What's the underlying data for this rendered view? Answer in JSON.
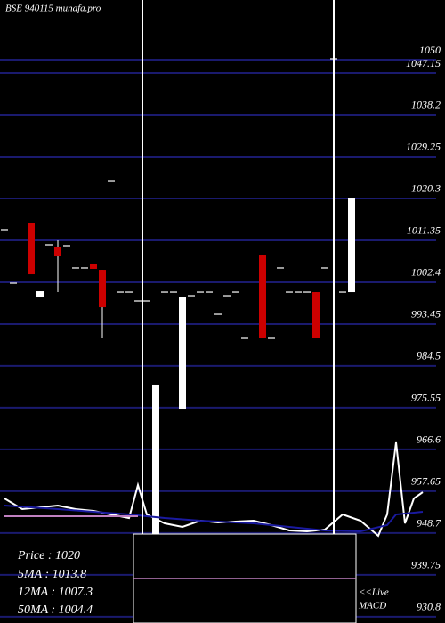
{
  "chart_data": {
    "type": "candlestick",
    "title": "BSE 940115 munafa.pro",
    "info": [
      "Price   : 1020",
      "5MA : 1013.8",
      "12MA : 1007.3",
      "50MA : 1004.4"
    ],
    "macd_label": [
      "<<Live",
      "MACD"
    ],
    "xlim": [
      -0.5,
      49.5
    ],
    "ylim": [
      929.44,
      1062.77
    ],
    "yticks": [
      1050,
      1047.15,
      1038.2,
      1029.25,
      1020.3,
      1011.35,
      1002.4,
      993.45,
      984.5,
      975.55,
      966.6,
      957.65,
      948.7,
      939.75,
      930.8
    ],
    "grid": true,
    "up_color": "#ffffff",
    "down_color": "#cc0000",
    "x": [
      0,
      1,
      3,
      4,
      5,
      6,
      7,
      8,
      9,
      10,
      11,
      12,
      13,
      14,
      15,
      16,
      17,
      18,
      19,
      20,
      21,
      22,
      23,
      24,
      25,
      26,
      27,
      29,
      30,
      31,
      32,
      33,
      34,
      35,
      36,
      37,
      38,
      39
    ],
    "open": [
      1013.63,
      1002.2,
      1015.15,
      999.15,
      1010.39,
      1010.01,
      1010.2,
      1005.44,
      1005.44,
      1006.2,
      1005.05,
      1024.1,
      1000.29,
      1000.29,
      998.39,
      998.39,
      948.48,
      1000.29,
      1000.29,
      975.15,
      999.34,
      1000.29,
      1000.29,
      995.53,
      999.34,
      1000.29,
      990.39,
      1008.1,
      990.39,
      1005.44,
      1000.29,
      1000.29,
      1000.29,
      1000.29,
      1005.44,
      1050.2,
      1000.29,
      1000.29
    ],
    "high": [
      1013.63,
      1002.2,
      1015.15,
      1000.48,
      1010.39,
      1011.34,
      1010.2,
      1005.44,
      1005.44,
      1006.2,
      1005.05,
      1024.1,
      1000.29,
      1000.29,
      998.39,
      998.39,
      980.3,
      1000.29,
      1000.29,
      999.15,
      999.34,
      1000.29,
      1000.29,
      995.53,
      999.34,
      1000.29,
      990.39,
      1008.1,
      990.39,
      1005.44,
      1000.29,
      1000.29,
      1000.29,
      1000.29,
      1005.44,
      1050.2,
      1000.29,
      1020.29
    ],
    "low": [
      1013.63,
      1002.2,
      1004.1,
      999.15,
      1010.39,
      1000.29,
      1010.2,
      1005.44,
      1005.44,
      1005.25,
      990.39,
      1024.1,
      1000.29,
      1000.29,
      998.39,
      998.39,
      948.48,
      1000.29,
      1000.29,
      975.15,
      999.34,
      1000.29,
      1000.29,
      995.53,
      999.34,
      1000.29,
      990.39,
      990.39,
      990.39,
      1005.44,
      1000.29,
      1000.29,
      1000.29,
      990.39,
      1005.44,
      1050.2,
      1000.29,
      1000.29
    ],
    "close": [
      1013.63,
      1002.2,
      1004.1,
      1000.48,
      1010.39,
      1007.91,
      1010.2,
      1005.44,
      1005.44,
      1005.25,
      997.05,
      1024.1,
      1000.29,
      1000.29,
      998.39,
      998.39,
      980.3,
      1000.29,
      1000.29,
      999.15,
      999.34,
      1000.29,
      1000.29,
      995.53,
      999.34,
      1000.29,
      990.39,
      990.39,
      990.39,
      1005.44,
      1000.29,
      1000.29,
      1000.29,
      990.39,
      1005.44,
      1050.2,
      1000.29,
      1020.29
    ],
    "lines": [
      {
        "color": "#ffffff",
        "x": [
          0,
          2,
          4,
          6,
          8,
          10,
          12,
          14,
          15,
          16,
          18,
          20,
          22,
          24,
          26,
          28,
          30,
          32,
          34,
          36,
          38,
          40,
          42,
          43,
          44,
          45,
          46,
          47
        ],
        "values": [
          956.1,
          953.82,
          954.2,
          954.58,
          953.82,
          953.44,
          952.67,
          951.91,
          958.96,
          952.67,
          950.77,
          950.01,
          951.34,
          950.96,
          951.15,
          951.34,
          950.39,
          949.25,
          949.05,
          949.44,
          952.67,
          951.34,
          948.1,
          952.67,
          968.1,
          950.77,
          956.1,
          957.44
        ]
      },
      {
        "color": "#1a1aa0",
        "x": [
          0,
          6,
          10,
          14,
          18,
          22,
          28,
          32,
          36,
          40,
          43,
          44,
          47
        ],
        "values": [
          954.58,
          953.82,
          953.25,
          952.67,
          951.91,
          951.34,
          950.77,
          950.01,
          949.25,
          949.05,
          950.39,
          952.67,
          953.25
        ]
      },
      {
        "color": "#c080c0",
        "x": [
          0,
          15
        ],
        "values": [
          952.29,
          952.29
        ]
      }
    ]
  }
}
